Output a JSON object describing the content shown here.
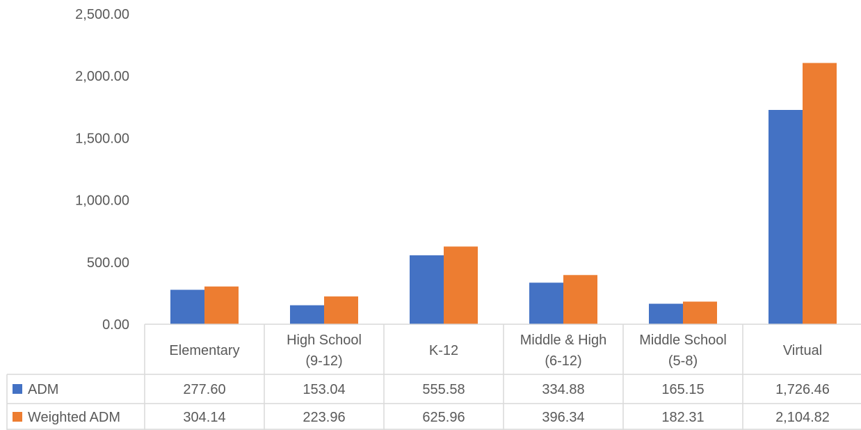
{
  "chart_data": {
    "type": "bar",
    "categories": [
      [
        "Elementary"
      ],
      [
        "High School",
        "(9-12)"
      ],
      [
        "K-12"
      ],
      [
        "Middle & High",
        "(6-12)"
      ],
      [
        "Middle School",
        "(5-8)"
      ],
      [
        "Virtual"
      ]
    ],
    "series": [
      {
        "name": "ADM",
        "color": "#4472C4",
        "values": [
          277.6,
          153.04,
          555.58,
          334.88,
          165.15,
          1726.46
        ],
        "labels": [
          "277.60",
          "153.04",
          "555.58",
          "334.88",
          "165.15",
          "1,726.46"
        ]
      },
      {
        "name": "Weighted ADM",
        "color": "#ED7D31",
        "values": [
          304.14,
          223.96,
          625.96,
          396.34,
          182.31,
          2104.82
        ],
        "labels": [
          "304.14",
          "223.96",
          "625.96",
          "396.34",
          "182.31",
          "2,104.82"
        ]
      }
    ],
    "ylim": [
      0,
      2500
    ],
    "yticks": [
      0,
      500,
      1000,
      1500,
      2000,
      2500
    ],
    "ytick_labels": [
      "0.00",
      "500.00",
      "1,000.00",
      "1,500.00",
      "2,000.00",
      "2,500.00"
    ],
    "legend": "data-table",
    "grid": false
  }
}
